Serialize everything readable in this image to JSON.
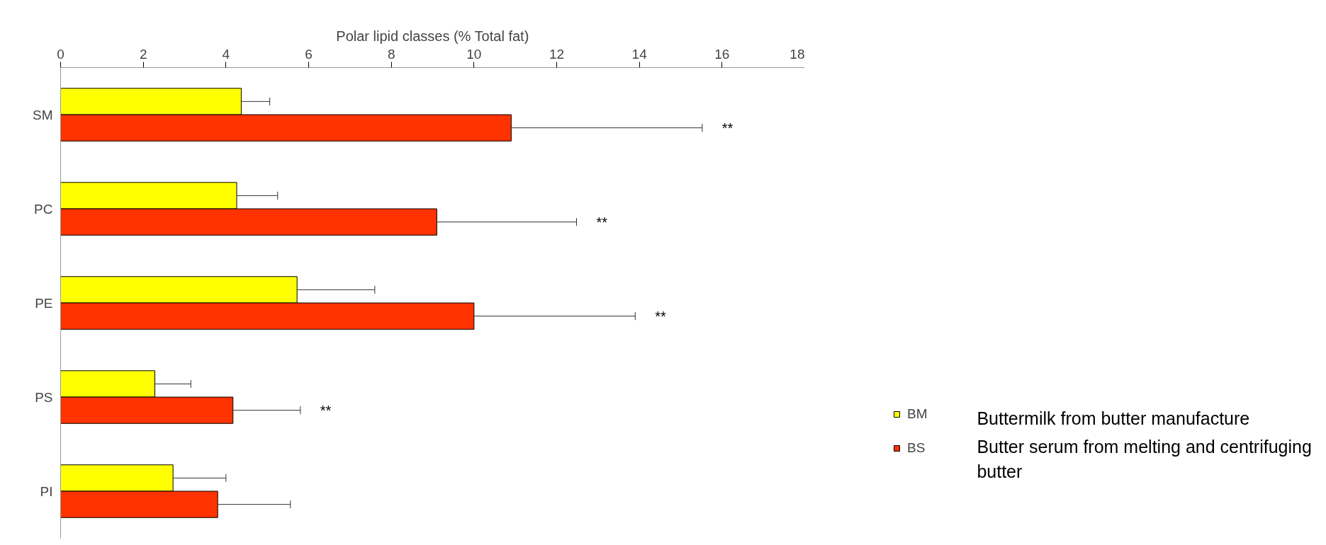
{
  "chart_data": {
    "type": "bar",
    "orientation": "horizontal",
    "xlabel": "Polar lipid classes (% Total fat)",
    "categories": [
      "SM",
      "PC",
      "PE",
      "PS",
      "PI"
    ],
    "series": [
      {
        "name": "BM",
        "color": "#ffff00",
        "values": [
          4.37,
          4.26,
          5.72,
          2.28,
          2.72
        ],
        "errors": [
          [
            4.37,
            5.06
          ],
          [
            4.26,
            5.25
          ],
          [
            5.72,
            7.6
          ],
          [
            2.28,
            3.15
          ],
          [
            2.72,
            4.0
          ]
        ]
      },
      {
        "name": "BS",
        "color": "#ff3300",
        "values": [
          10.9,
          9.1,
          10.0,
          4.17,
          3.8
        ],
        "errors": [
          [
            10.9,
            15.52
          ],
          [
            9.1,
            12.48
          ],
          [
            10.0,
            13.9
          ],
          [
            4.17,
            5.8
          ],
          [
            3.8,
            5.56
          ]
        ]
      }
    ],
    "xlim": [
      0,
      18
    ],
    "xticks": [
      0,
      2,
      4,
      6,
      8,
      10,
      12,
      14,
      16,
      18
    ],
    "grid": false,
    "legend": "bottom right",
    "annotations": [
      "**",
      "**",
      "**",
      "**",
      "Buttermilk from butter manufacture",
      "Butter serum from melting and centrifuging butter"
    ]
  }
}
